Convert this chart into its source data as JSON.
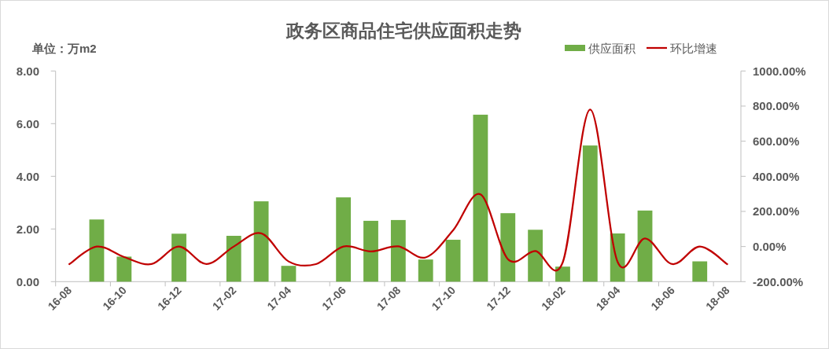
{
  "chart_data": {
    "type": "bar",
    "title": "政务区商品住宅供应面积走势",
    "ylabel": "单位：万m2",
    "categories": [
      "16-08",
      null,
      "16-10",
      null,
      "16-12",
      null,
      "17-02",
      null,
      "17-04",
      null,
      "17-06",
      null,
      "17-08",
      null,
      "17-10",
      null,
      "17-12",
      null,
      "18-02",
      null,
      "18-04",
      null,
      "18-06",
      null,
      "18-08"
    ],
    "series": [
      {
        "name": "供应面积",
        "type": "bar",
        "color": "#70ad47",
        "values": [
          null,
          2.36,
          0.95,
          null,
          1.82,
          null,
          1.74,
          3.05,
          0.6,
          null,
          3.2,
          2.31,
          2.34,
          0.84,
          1.59,
          6.34,
          2.6,
          1.97,
          0.57,
          5.17,
          1.83,
          2.7,
          null,
          0.77,
          null
        ]
      },
      {
        "name": "环比增速",
        "type": "line",
        "axis": "y2",
        "color": "#c00000",
        "values": [
          -100,
          0,
          -60,
          -100,
          0,
          -100,
          0,
          75,
          -85,
          -100,
          0,
          -28,
          1,
          -62,
          92,
          297,
          -72,
          -26,
          -90,
          780,
          -87,
          46,
          -100,
          0,
          -100
        ]
      }
    ],
    "ylim": [
      0,
      8
    ],
    "yticks": [
      {
        "value": 0,
        "label": "0.00"
      },
      {
        "value": 2,
        "label": "2.00"
      },
      {
        "value": 4,
        "label": "4.00"
      },
      {
        "value": 6,
        "label": "6.00"
      },
      {
        "value": 8,
        "label": "8.00"
      }
    ],
    "y2lim": [
      -200,
      1000
    ],
    "y2ticks": [
      {
        "value": -200,
        "label": "-200.00%"
      },
      {
        "value": 0,
        "label": "0.00%"
      },
      {
        "value": 200,
        "label": "200.00%"
      },
      {
        "value": 400,
        "label": "400.00%"
      },
      {
        "value": 600,
        "label": "600.00%"
      },
      {
        "value": 800,
        "label": "800.00%"
      },
      {
        "value": 1000,
        "label": "1000.00%"
      }
    ],
    "legend": "top right",
    "line_style": "solid"
  }
}
